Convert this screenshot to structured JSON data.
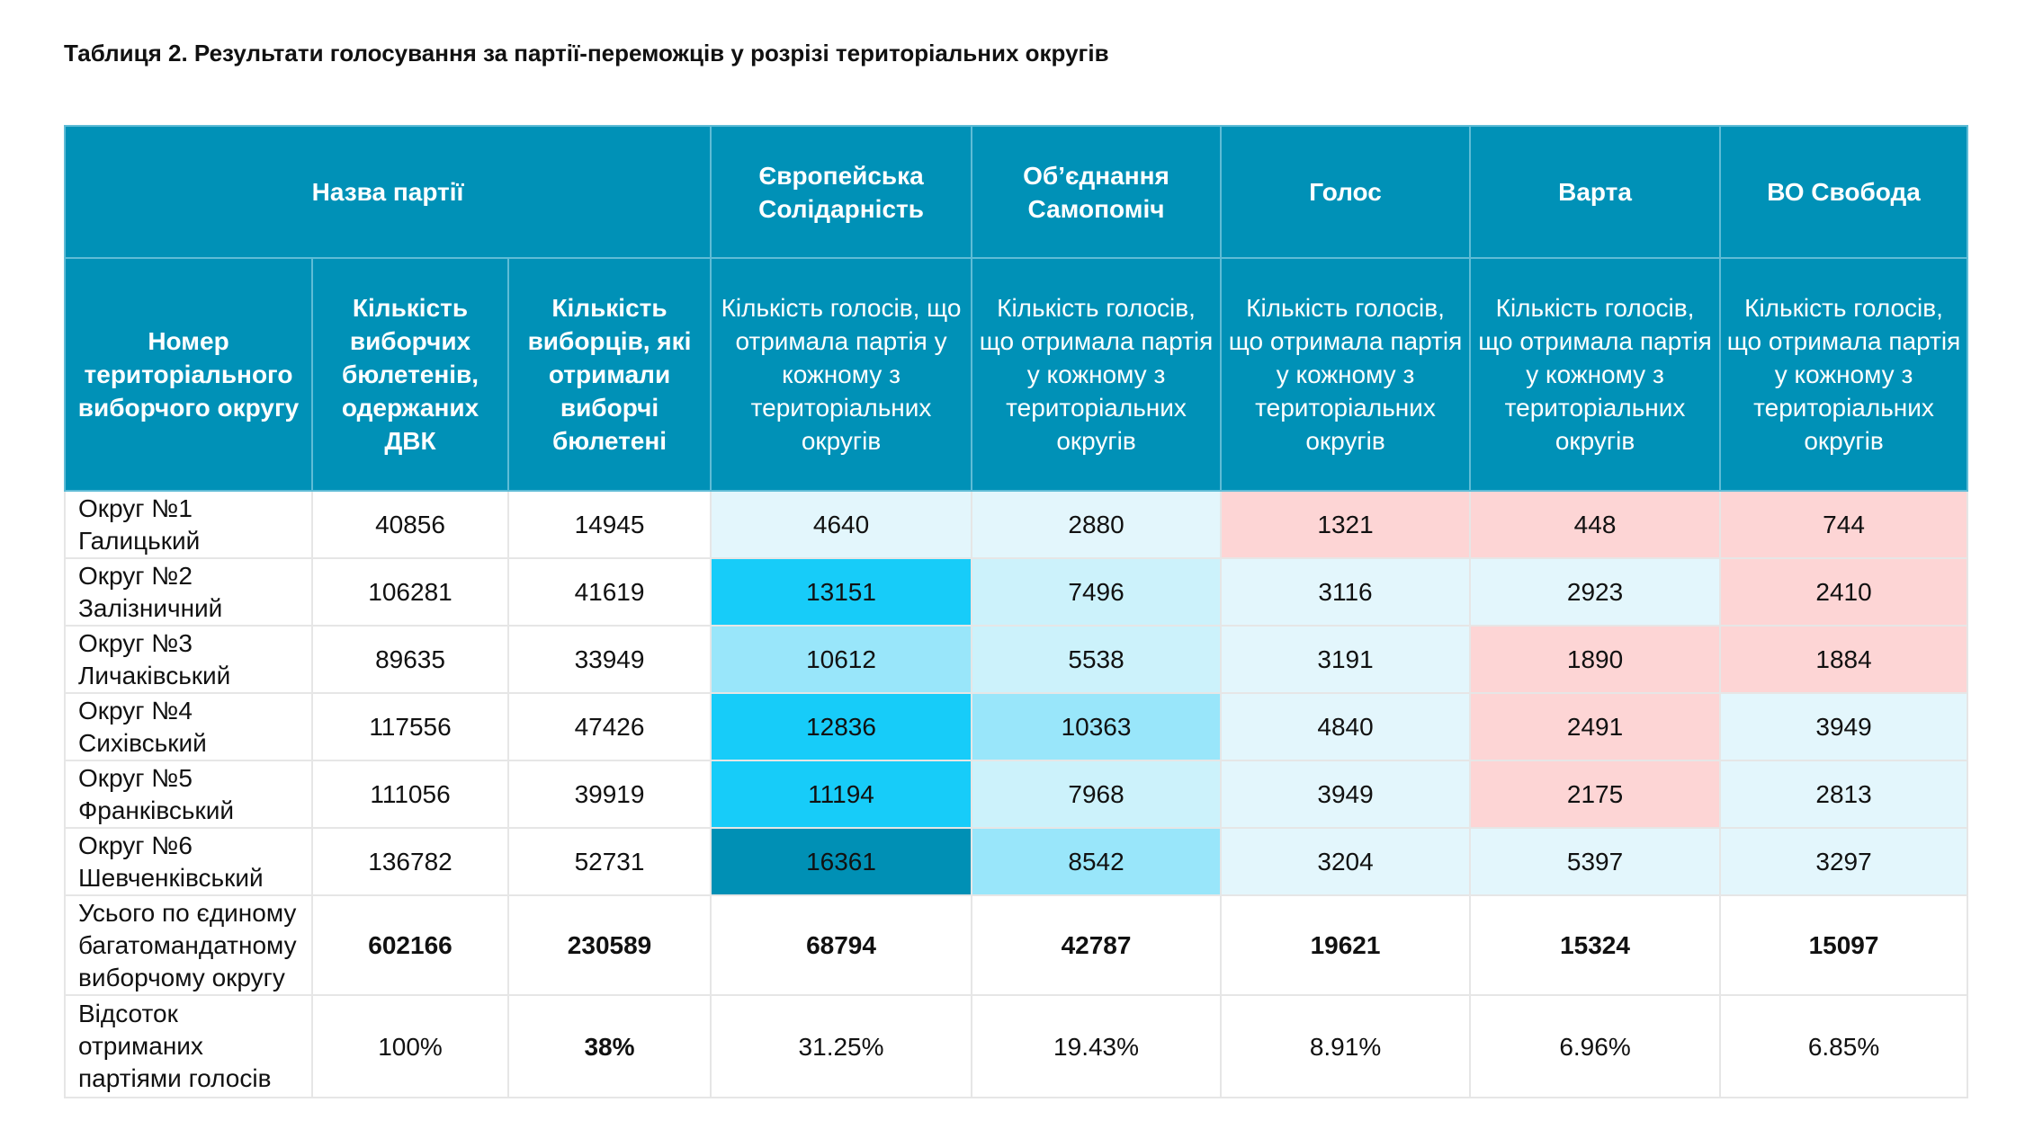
{
  "title": "Таблиця 2. Результати голосування за партії-переможців у розрізі територіальних округів",
  "header": {
    "party_name_label": "Назва партії",
    "parties": [
      "Європейська Солідарність",
      "Об’єднання Самопоміч",
      "Голос",
      "Варта",
      "ВО Свобода"
    ],
    "col_district": "Номер територіального виборчого округу",
    "col_ballots": "Кількість виборчих бюлетенів, одержаних ДВК",
    "col_voters": "Кількість виборців, які отримали виборчі бюлетені",
    "col_votes": "Кількість голосів, що отримала партія у кожному з територіальних округів"
  },
  "rows": [
    {
      "district": "Округ №1 Галицький",
      "ballots": "40856",
      "voters": "14945",
      "votes": [
        "4640",
        "2880",
        "1321",
        "448",
        "744"
      ],
      "shade": [
        "c1",
        "c1",
        "p",
        "p",
        "p"
      ]
    },
    {
      "district": "Округ №2 Залізничний",
      "ballots": "106281",
      "voters": "41619",
      "votes": [
        "13151",
        "7496",
        "3116",
        "2923",
        "2410"
      ],
      "shade": [
        "c4",
        "c2",
        "c1",
        "c1",
        "p"
      ]
    },
    {
      "district": "Округ №3 Личаківський",
      "ballots": "89635",
      "voters": "33949",
      "votes": [
        "10612",
        "5538",
        "3191",
        "1890",
        "1884"
      ],
      "shade": [
        "c3",
        "c2",
        "c1",
        "p",
        "p"
      ]
    },
    {
      "district": "Округ №4 Сихівський",
      "ballots": "117556",
      "voters": "47426",
      "votes": [
        "12836",
        "10363",
        "4840",
        "2491",
        "3949"
      ],
      "shade": [
        "c4",
        "c3",
        "c1",
        "p",
        "c1"
      ]
    },
    {
      "district": "Округ №5 Франківський",
      "ballots": "111056",
      "voters": "39919",
      "votes": [
        "11194",
        "7968",
        "3949",
        "2175",
        "2813"
      ],
      "shade": [
        "c4",
        "c2",
        "c1",
        "p",
        "c1"
      ]
    },
    {
      "district": "Округ №6 Шевченківський",
      "ballots": "136782",
      "voters": "52731",
      "votes": [
        "16361",
        "8542",
        "3204",
        "5397",
        "3297"
      ],
      "shade": [
        "c5",
        "c3",
        "c1",
        "c1",
        "c1"
      ]
    }
  ],
  "total": {
    "label": "Усього по єдиному багатомандатному виборчому округу",
    "ballots": "602166",
    "voters": "230589",
    "votes": [
      "68794",
      "42787",
      "19621",
      "15324",
      "15097"
    ]
  },
  "percent": {
    "label": "Відсоток отриманих партіями голосів",
    "ballots": "100%",
    "voters": "38%",
    "votes": [
      "31.25%",
      "19.43%",
      "8.91%",
      "6.96%",
      "6.85%"
    ]
  }
}
